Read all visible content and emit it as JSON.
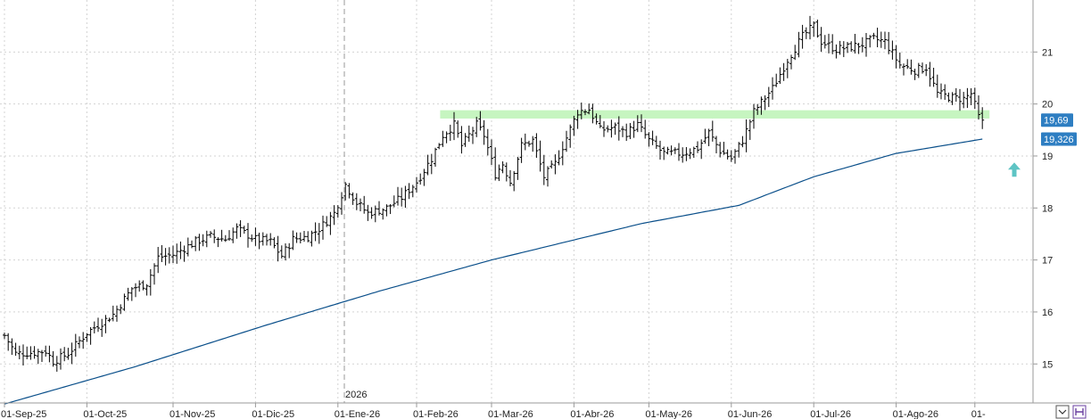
{
  "chart_data": {
    "type": "ohlc",
    "year_marker": "2026",
    "x_ticks": [
      "01-Sep-25",
      "01-Oct-25",
      "01-Nov-25",
      "01-Dic-25",
      "01-Ene-26",
      "01-Feb-26",
      "01-Mar-26",
      "01-Abr-26",
      "01-May-26",
      "01-Jun-26",
      "01-Jul-26",
      "01-Ago-26",
      "01-"
    ],
    "x_tick_bar_index": [
      0,
      22,
      45,
      67,
      89,
      110,
      130,
      152,
      172,
      194,
      216,
      238,
      259
    ],
    "y_ticks": [
      15,
      16,
      17,
      18,
      19,
      20,
      21
    ],
    "ylim": [
      14.25,
      22.0
    ],
    "grid": true,
    "close_anchors": [
      [
        0,
        15.55
      ],
      [
        3,
        15.2
      ],
      [
        8,
        15.22
      ],
      [
        11,
        15.25
      ],
      [
        13,
        15.05
      ],
      [
        17,
        15.2
      ],
      [
        22,
        15.6
      ],
      [
        29,
        15.95
      ],
      [
        34,
        16.45
      ],
      [
        38,
        16.55
      ],
      [
        41,
        17.05
      ],
      [
        45,
        17.1
      ],
      [
        51,
        17.35
      ],
      [
        55,
        17.45
      ],
      [
        59,
        17.4
      ],
      [
        62,
        17.6
      ],
      [
        67,
        17.4
      ],
      [
        71,
        17.35
      ],
      [
        74,
        17.08
      ],
      [
        77,
        17.4
      ],
      [
        81,
        17.45
      ],
      [
        84,
        17.6
      ],
      [
        88,
        17.9
      ],
      [
        91,
        18.45
      ],
      [
        94,
        18.1
      ],
      [
        97,
        17.9
      ],
      [
        102,
        18.0
      ],
      [
        106,
        18.2
      ],
      [
        110,
        18.5
      ],
      [
        114,
        18.95
      ],
      [
        117,
        19.4
      ],
      [
        120,
        19.6
      ],
      [
        122,
        19.2
      ],
      [
        126,
        19.6
      ],
      [
        128,
        19.4
      ],
      [
        131,
        18.65
      ],
      [
        133,
        18.85
      ],
      [
        135,
        18.5
      ],
      [
        138,
        19.2
      ],
      [
        141,
        19.3
      ],
      [
        144,
        18.6
      ],
      [
        147,
        18.85
      ],
      [
        150,
        19.35
      ],
      [
        153,
        19.85
      ],
      [
        156,
        19.9
      ],
      [
        159,
        19.5
      ],
      [
        163,
        19.55
      ],
      [
        166,
        19.45
      ],
      [
        169,
        19.6
      ],
      [
        172,
        19.3
      ],
      [
        176,
        19.05
      ],
      [
        181,
        19.05
      ],
      [
        185,
        19.15
      ],
      [
        188,
        19.45
      ],
      [
        191,
        19.1
      ],
      [
        194,
        18.95
      ],
      [
        197,
        19.3
      ],
      [
        200,
        19.85
      ],
      [
        205,
        20.3
      ],
      [
        209,
        20.85
      ],
      [
        213,
        21.3
      ],
      [
        216,
        21.5
      ],
      [
        218,
        21.2
      ],
      [
        222,
        21.05
      ],
      [
        226,
        21.1
      ],
      [
        229,
        21.15
      ],
      [
        232,
        21.25
      ],
      [
        235,
        21.2
      ],
      [
        239,
        20.75
      ],
      [
        243,
        20.65
      ],
      [
        246,
        20.7
      ],
      [
        249,
        20.2
      ],
      [
        253,
        20.12
      ],
      [
        256,
        20.1
      ],
      [
        258,
        20.2
      ],
      [
        260,
        19.75
      ],
      [
        261,
        19.69
      ]
    ],
    "moving_average": [
      [
        0,
        14.23
      ],
      [
        35,
        14.95
      ],
      [
        70,
        15.75
      ],
      [
        100,
        16.4
      ],
      [
        130,
        17.0
      ],
      [
        170,
        17.7
      ],
      [
        196,
        18.05
      ],
      [
        216,
        18.6
      ],
      [
        238,
        19.05
      ],
      [
        261,
        19.326
      ]
    ],
    "support_band": [
      19.72,
      19.88
    ],
    "support_band_bar_range": [
      117,
      261
    ],
    "last_price": {
      "value": 19.69,
      "label": "19,69"
    },
    "ma_last": {
      "value": 19.326,
      "label": "19,326"
    },
    "signal_arrow_value": 18.72,
    "colors": {
      "bars": "#000000",
      "moving_average": "#0a4f8a",
      "support_band": "#c6f5c0",
      "price_badge": "#2e7ec2",
      "arrow": "#5ec4c4",
      "grid": "#d3d3d3"
    }
  }
}
